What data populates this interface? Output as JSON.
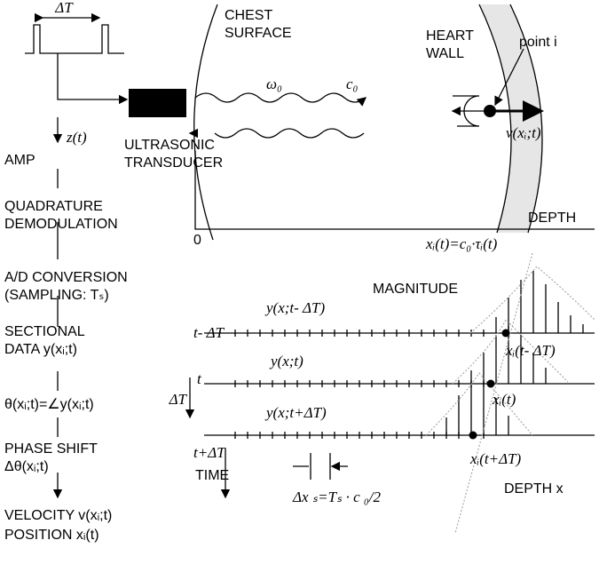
{
  "labels": {
    "pulse_interval": "ΔT",
    "chest": [
      "CHEST",
      "SURFACE"
    ],
    "omega": "ω₀",
    "c0": "c₀",
    "heart": [
      "HEART",
      "WALL"
    ],
    "point": "point  i",
    "velocity_vec": "v(xᵢ;t)",
    "zt": "z(t)",
    "transducer": [
      "ULTRASONIC",
      "TRANSDUCER"
    ],
    "depth": "DEPTH",
    "origin": "0",
    "position_eq": "xᵢ(t)=c₀·τᵢ(t)",
    "magnitude": "MAGNITUDE",
    "rows": [
      {
        "signal": "y(x;t- ΔT)",
        "time": "t- ΔT",
        "point": "xᵢ(t- ΔT)"
      },
      {
        "signal": "y(x;t)",
        "time": "t",
        "point": "xᵢ(t)"
      },
      {
        "signal": "y(x;t+ΔT)",
        "time": "t+ΔT",
        "point": "xᵢ(t+ΔT)"
      }
    ],
    "time_delta": "ΔT",
    "time_axis": "TIME",
    "sampling_eq": "Δx ₛ=Tₛ · c ₀/2",
    "depth_x": "DEPTH x"
  },
  "flow": [
    [
      "AMP"
    ],
    [
      "QUADRATURE",
      "DEMODULATION"
    ],
    [
      "A/D CONVERSION",
      "(SAMPLING: Tₛ)"
    ],
    [
      "SECTIONAL",
      "DATA  y(xᵢ;t)"
    ],
    [
      "θ(xᵢ;t)=∠y(xᵢ;t)"
    ],
    [
      "PHASE SHIFT",
      "Δθ(xᵢ;t)"
    ],
    [
      "VELOCITY  v(xᵢ;t)",
      "POSITION  xᵢ(t)"
    ]
  ]
}
